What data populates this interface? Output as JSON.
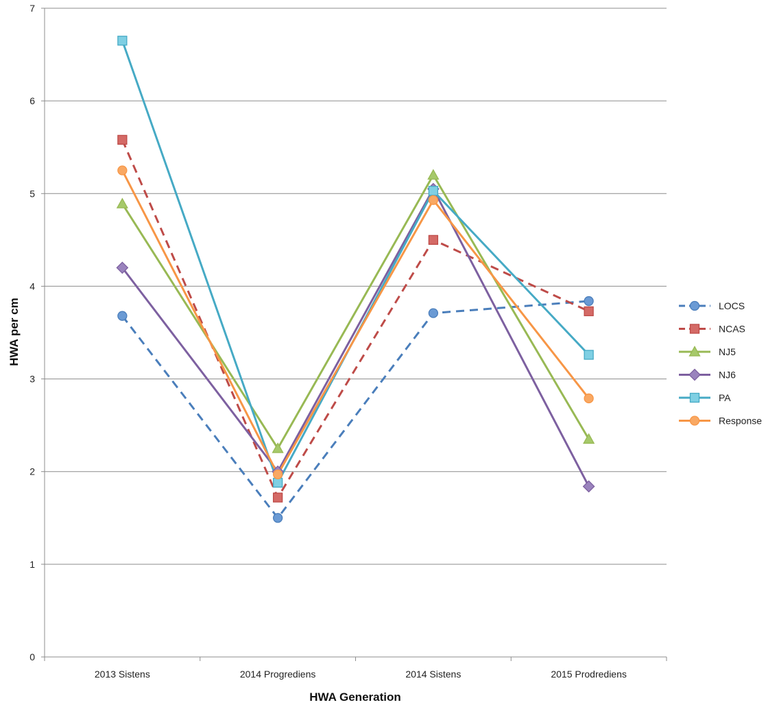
{
  "chart_data": {
    "type": "line",
    "title": "",
    "xlabel": "HWA Generation",
    "ylabel": "HWA per cm",
    "ylim": [
      0,
      7
    ],
    "yticks": [
      0,
      1,
      2,
      3,
      4,
      5,
      6,
      7
    ],
    "grid": "horizontal",
    "legend_position": "right",
    "categories": [
      "2013 Sistens",
      "2014 Progrediens",
      "2014 Sistens",
      "2015 Prodrediens"
    ],
    "series": [
      {
        "name": "LOCS",
        "values": [
          3.68,
          1.5,
          3.71,
          3.84
        ],
        "color": "#4a7ebb",
        "marker": "circle",
        "marker_fill": "#6a9ad4",
        "dashed": true
      },
      {
        "name": "NCAS",
        "values": [
          5.58,
          1.72,
          4.5,
          3.73
        ],
        "color": "#be4b48",
        "marker": "square",
        "marker_fill": "#d46a66",
        "dashed": true
      },
      {
        "name": "NJ5",
        "values": [
          4.89,
          2.25,
          5.2,
          2.35
        ],
        "color": "#98b954",
        "marker": "triangle",
        "marker_fill": "#a6c96a",
        "dashed": false
      },
      {
        "name": "NJ6",
        "values": [
          4.2,
          2.0,
          5.05,
          1.84
        ],
        "color": "#7d60a0",
        "marker": "diamond",
        "marker_fill": "#9a83bd",
        "dashed": false
      },
      {
        "name": "PA",
        "values": [
          6.65,
          1.88,
          5.03,
          3.26
        ],
        "color": "#46aac5",
        "marker": "square",
        "marker_fill": "#7fcfe3",
        "dashed": false
      },
      {
        "name": "Response",
        "values": [
          5.25,
          1.97,
          4.93,
          2.79
        ],
        "color": "#f79646",
        "marker": "circle",
        "marker_fill": "#f9a863",
        "dashed": false
      }
    ]
  }
}
